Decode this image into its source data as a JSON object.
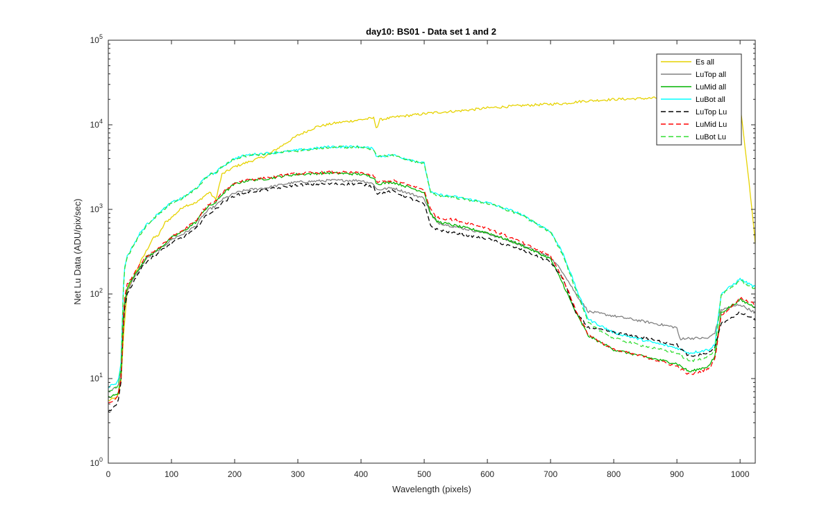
{
  "chart_data": {
    "type": "line",
    "title": "day10: BS01 - Data set 1 and 2",
    "xlabel": "Wavelength (pixels)",
    "ylabel": "Net Lu Data (ADU/pix/sec)",
    "xlim": [
      0,
      1024
    ],
    "ylim": [
      1,
      100000
    ],
    "yscale": "log",
    "xticks": [
      0,
      100,
      200,
      300,
      400,
      500,
      600,
      700,
      800,
      900,
      1000
    ],
    "xtick_labels": [
      "0",
      "100",
      "200",
      "300",
      "400",
      "500",
      "600",
      "700",
      "800",
      "900",
      "1000"
    ],
    "yticks": [
      1,
      10,
      100,
      1000,
      10000,
      100000
    ],
    "ytick_labels": [
      {
        "base": "10",
        "exp": "0"
      },
      {
        "base": "10",
        "exp": "1"
      },
      {
        "base": "10",
        "exp": "2"
      },
      {
        "base": "10",
        "exp": "3"
      },
      {
        "base": "10",
        "exp": "4"
      },
      {
        "base": "10",
        "exp": "5"
      }
    ],
    "legend_position": "top-right",
    "series": [
      {
        "name": "Es  all",
        "color": "#e6d200",
        "dash": "solid",
        "x": [
          0,
          15,
          20,
          25,
          30,
          40,
          50,
          60,
          70,
          80,
          90,
          100,
          120,
          140,
          150,
          160,
          170,
          180,
          200,
          220,
          250,
          280,
          300,
          330,
          360,
          400,
          420,
          425,
          430,
          460,
          500,
          520,
          550,
          580,
          600,
          650,
          700,
          720,
          750,
          800,
          850,
          880,
          900,
          950,
          1000,
          1010,
          1020,
          1024
        ],
        "y": [
          5.5,
          6,
          9,
          40,
          110,
          160,
          230,
          320,
          450,
          500,
          700,
          800,
          1100,
          1200,
          1400,
          1600,
          1300,
          2600,
          3200,
          3600,
          4300,
          6000,
          7500,
          9500,
          10500,
          11500,
          12000,
          9000,
          11500,
          12500,
          13500,
          14000,
          14500,
          15200,
          15800,
          16800,
          17600,
          17800,
          19000,
          20000,
          20500,
          21000,
          20000,
          20000,
          18000,
          4000,
          800,
          400
        ]
      },
      {
        "name": "LuTop  all",
        "color": "#808080",
        "dash": "solid",
        "x": [
          0,
          15,
          20,
          25,
          30,
          40,
          50,
          60,
          80,
          100,
          120,
          140,
          150,
          160,
          170,
          180,
          200,
          220,
          250,
          280,
          300,
          350,
          400,
          420,
          425,
          450,
          500,
          510,
          520,
          550,
          600,
          650,
          700,
          720,
          740,
          760,
          800,
          850,
          900,
          905,
          910,
          950,
          960,
          970,
          1000,
          1024
        ],
        "y": [
          7,
          8,
          12,
          65,
          110,
          150,
          200,
          260,
          330,
          440,
          520,
          650,
          850,
          1000,
          1100,
          1300,
          1550,
          1700,
          1800,
          2000,
          2100,
          2200,
          2200,
          2000,
          1700,
          1800,
          1350,
          900,
          700,
          620,
          520,
          390,
          270,
          180,
          100,
          62,
          55,
          47,
          40,
          28,
          30,
          30,
          35,
          65,
          75,
          60
        ]
      },
      {
        "name": "LuMid  all",
        "color": "#00b400",
        "dash": "solid",
        "x": [
          0,
          15,
          20,
          25,
          30,
          40,
          50,
          60,
          80,
          100,
          120,
          140,
          150,
          160,
          170,
          180,
          200,
          220,
          250,
          280,
          300,
          350,
          400,
          420,
          425,
          450,
          500,
          510,
          520,
          550,
          600,
          650,
          700,
          720,
          740,
          760,
          800,
          850,
          900,
          920,
          950,
          960,
          970,
          1000,
          1024
        ],
        "y": [
          6,
          6.5,
          10,
          75,
          120,
          160,
          210,
          270,
          340,
          460,
          560,
          720,
          950,
          1100,
          1200,
          1500,
          2000,
          2200,
          2300,
          2500,
          2600,
          2700,
          2600,
          2400,
          2000,
          2100,
          1600,
          900,
          720,
          640,
          530,
          390,
          260,
          130,
          60,
          32,
          22,
          18,
          15,
          12,
          14,
          18,
          60,
          85,
          70
        ]
      },
      {
        "name": "LuBot  all",
        "color": "#00ffff",
        "dash": "solid",
        "x": [
          0,
          15,
          20,
          25,
          30,
          40,
          50,
          60,
          80,
          100,
          120,
          140,
          150,
          160,
          170,
          180,
          200,
          220,
          250,
          280,
          300,
          350,
          400,
          420,
          425,
          450,
          500,
          510,
          520,
          550,
          600,
          650,
          700,
          720,
          740,
          760,
          800,
          850,
          900,
          920,
          950,
          960,
          970,
          1000,
          1024
        ],
        "y": [
          8,
          9,
          15,
          200,
          280,
          380,
          520,
          650,
          900,
          1200,
          1400,
          1800,
          2200,
          2600,
          2700,
          3200,
          4000,
          4400,
          4600,
          4800,
          5000,
          5500,
          5500,
          5200,
          4200,
          4400,
          3500,
          1600,
          1500,
          1400,
          1200,
          900,
          550,
          300,
          120,
          50,
          35,
          28,
          23,
          20,
          22,
          25,
          100,
          150,
          120
        ]
      },
      {
        "name": "LuTop  Lu",
        "color": "#000000",
        "dash": "7,4",
        "x": [
          0,
          15,
          20,
          25,
          30,
          40,
          50,
          60,
          80,
          100,
          120,
          140,
          150,
          160,
          170,
          180,
          200,
          220,
          250,
          280,
          300,
          350,
          400,
          420,
          425,
          450,
          500,
          510,
          520,
          550,
          600,
          650,
          700,
          720,
          740,
          760,
          800,
          850,
          900,
          920,
          950,
          960,
          970,
          1000,
          1024
        ],
        "y": [
          4,
          5,
          9,
          65,
          100,
          140,
          190,
          240,
          310,
          400,
          480,
          600,
          780,
          900,
          1000,
          1200,
          1450,
          1600,
          1700,
          1850,
          1950,
          2000,
          2000,
          1850,
          1550,
          1650,
          1150,
          650,
          580,
          520,
          450,
          340,
          240,
          150,
          60,
          40,
          35,
          30,
          25,
          18,
          20,
          23,
          45,
          60,
          50
        ]
      },
      {
        "name": "LuMid  Lu",
        "color": "#ff0000",
        "dash": "7,4",
        "x": [
          0,
          15,
          20,
          25,
          30,
          40,
          50,
          60,
          80,
          100,
          120,
          140,
          150,
          160,
          170,
          180,
          200,
          220,
          250,
          280,
          300,
          350,
          400,
          420,
          425,
          450,
          500,
          510,
          520,
          550,
          600,
          650,
          700,
          720,
          740,
          760,
          800,
          850,
          900,
          920,
          950,
          960,
          970,
          1000,
          1024
        ],
        "y": [
          5,
          6,
          10,
          80,
          130,
          170,
          220,
          280,
          350,
          470,
          580,
          740,
          980,
          1150,
          1250,
          1550,
          2050,
          2250,
          2350,
          2550,
          2650,
          2750,
          2700,
          2500,
          2100,
          2200,
          1700,
          1000,
          800,
          750,
          600,
          420,
          280,
          150,
          65,
          33,
          22,
          18,
          14,
          11,
          13,
          17,
          55,
          90,
          75
        ]
      },
      {
        "name": "LuBot  Lu",
        "color": "#33dd33",
        "dash": "7,4",
        "x": [
          0,
          15,
          20,
          25,
          30,
          40,
          50,
          60,
          80,
          100,
          120,
          140,
          150,
          160,
          170,
          180,
          200,
          220,
          250,
          280,
          300,
          350,
          400,
          420,
          425,
          450,
          500,
          510,
          520,
          550,
          600,
          650,
          700,
          720,
          740,
          760,
          800,
          850,
          900,
          920,
          950,
          960,
          970,
          1000,
          1024
        ],
        "y": [
          7,
          8,
          14,
          190,
          270,
          370,
          500,
          640,
          880,
          1180,
          1380,
          1780,
          2180,
          2580,
          2680,
          3180,
          3950,
          4350,
          4550,
          4750,
          4950,
          5450,
          5450,
          5150,
          4150,
          4350,
          3450,
          1580,
          1480,
          1380,
          1180,
          880,
          540,
          290,
          110,
          45,
          30,
          24,
          20,
          16,
          18,
          22,
          95,
          145,
          115
        ]
      }
    ]
  }
}
